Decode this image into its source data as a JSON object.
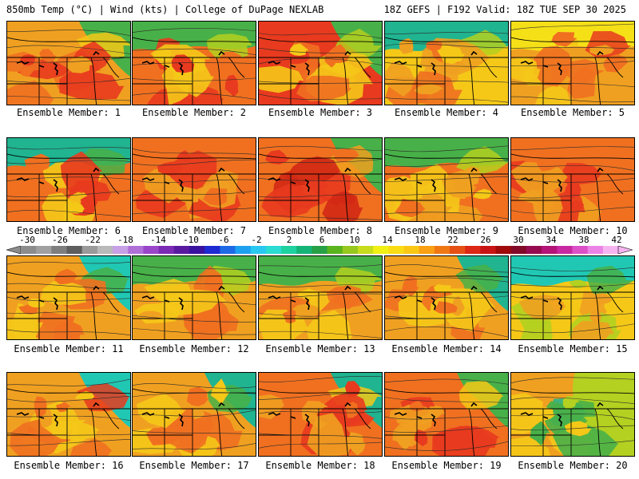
{
  "header": {
    "left": "850mb Temp (°C) | Wind (kts) | College of DuPage NEXLAB",
    "right": "18Z GEFS | F192 Valid: 18Z TUE SEP 30 2025"
  },
  "colorbar": {
    "tick_labels": [
      "-30",
      "-26",
      "-22",
      "-18",
      "-14",
      "-10",
      "-6",
      "-2",
      "2",
      "6",
      "10",
      "14",
      "18",
      "22",
      "26",
      "30",
      "34",
      "38",
      "42"
    ],
    "colors": [
      "#8c8c8c",
      "#a0a0a0",
      "#7e7e7e",
      "#5e5e5e",
      "#9a9a9a",
      "#b9b9b9",
      "#c8a0e6",
      "#b070d8",
      "#9a46c8",
      "#7a2ab4",
      "#5a1aa0",
      "#3a12a0",
      "#1e2ad2",
      "#1e6ae6",
      "#1ea0f0",
      "#28c8f0",
      "#2adcd2",
      "#1ed2a0",
      "#14b478",
      "#28a046",
      "#5ab41e",
      "#96c81e",
      "#c8dc1e",
      "#f0f014",
      "#fadc14",
      "#fac814",
      "#faa014",
      "#f07814",
      "#e65014",
      "#dc2814",
      "#c81414",
      "#a00a0a",
      "#820a28",
      "#960a50",
      "#b41478",
      "#c828a0",
      "#dc50c8",
      "#eb82e6",
      "#f5b4f0"
    ]
  },
  "members": [
    {
      "label": "Ensemble Member: 1",
      "palette": [
        "#f07020",
        "#f0a020",
        "#e83a1e",
        "#f5c818",
        "#48b048"
      ],
      "cool": "tr"
    },
    {
      "label": "Ensemble Member: 2",
      "palette": [
        "#e83a1e",
        "#f07020",
        "#f5c818",
        "#b4d020",
        "#48b048"
      ],
      "cool": "top"
    },
    {
      "label": "Ensemble Member: 3",
      "palette": [
        "#f07020",
        "#e83a1e",
        "#f5c818",
        "#b4d020",
        "#48b048"
      ],
      "cool": "tr"
    },
    {
      "label": "Ensemble Member: 4",
      "palette": [
        "#f0a020",
        "#f5c818",
        "#f07020",
        "#b4d020",
        "#20b490"
      ],
      "cool": "top"
    },
    {
      "label": "Ensemble Member: 5",
      "palette": [
        "#f07020",
        "#f0a020",
        "#f5c818",
        "#e83a1e",
        "#f5e018"
      ],
      "cool": "top"
    },
    {
      "label": "Ensemble Member: 6",
      "palette": [
        "#e83a1e",
        "#f07020",
        "#f5c818",
        "#48b048",
        "#20b490"
      ],
      "cool": "top"
    },
    {
      "label": "Ensemble Member: 7",
      "palette": [
        "#e83a1e",
        "#f07020",
        "#f0a020",
        "#f5c818",
        "#d22814"
      ],
      "cool": "none"
    },
    {
      "label": "Ensemble Member: 8",
      "palette": [
        "#e83a1e",
        "#f07020",
        "#d22814",
        "#f0a020",
        "#48b048"
      ],
      "cool": "tr"
    },
    {
      "label": "Ensemble Member: 9",
      "palette": [
        "#f0a020",
        "#f07020",
        "#f5c818",
        "#b4d020",
        "#48b048"
      ],
      "cool": "top"
    },
    {
      "label": "Ensemble Member: 10",
      "palette": [
        "#e83a1e",
        "#f07020",
        "#f0a020",
        "#d22814",
        "#f5c818"
      ],
      "cool": "none"
    },
    {
      "label": "Ensemble Member: 11",
      "palette": [
        "#f07020",
        "#f0a020",
        "#f5c818",
        "#48b048",
        "#20c8b4"
      ],
      "cool": "tr"
    },
    {
      "label": "Ensemble Member: 12",
      "palette": [
        "#f07020",
        "#f0a020",
        "#f5c818",
        "#b4d020",
        "#48b048"
      ],
      "cool": "top"
    },
    {
      "label": "Ensemble Member: 13",
      "palette": [
        "#f07020",
        "#f0a020",
        "#f5c818",
        "#b4d020",
        "#48b048"
      ],
      "cool": "top"
    },
    {
      "label": "Ensemble Member: 14",
      "palette": [
        "#f07020",
        "#f0a020",
        "#f5c818",
        "#48b048",
        "#20b490"
      ],
      "cool": "tr"
    },
    {
      "label": "Ensemble Member: 15",
      "palette": [
        "#f0a020",
        "#f5c818",
        "#b4d020",
        "#48b048",
        "#20c8b4"
      ],
      "cool": "top"
    },
    {
      "label": "Ensemble Member: 16",
      "palette": [
        "#f07020",
        "#f0a020",
        "#f5c818",
        "#e83a1e",
        "#20c8b4"
      ],
      "cool": "tr"
    },
    {
      "label": "Ensemble Member: 17",
      "palette": [
        "#f07020",
        "#f0a020",
        "#f5c818",
        "#48b048",
        "#20b490"
      ],
      "cool": "tr"
    },
    {
      "label": "Ensemble Member: 18",
      "palette": [
        "#e83a1e",
        "#f07020",
        "#f0a020",
        "#f5c818",
        "#20b490"
      ],
      "cool": "tr"
    },
    {
      "label": "Ensemble Member: 19",
      "palette": [
        "#e83a1e",
        "#f07020",
        "#f0a020",
        "#f5c818",
        "#48b048"
      ],
      "cool": "tr"
    },
    {
      "label": "Ensemble Member: 20",
      "palette": [
        "#f5c818",
        "#b4d020",
        "#48b048",
        "#20b490",
        "#f0a020"
      ],
      "cool": "left"
    }
  ]
}
